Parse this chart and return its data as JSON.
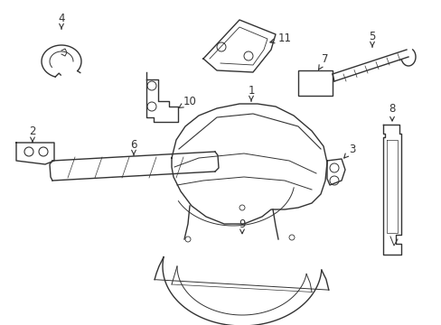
{
  "background_color": "#ffffff",
  "line_color": "#333333",
  "line_width": 1.0,
  "figsize": [
    4.89,
    3.6
  ],
  "dpi": 100,
  "label_fontsize": 8.5
}
